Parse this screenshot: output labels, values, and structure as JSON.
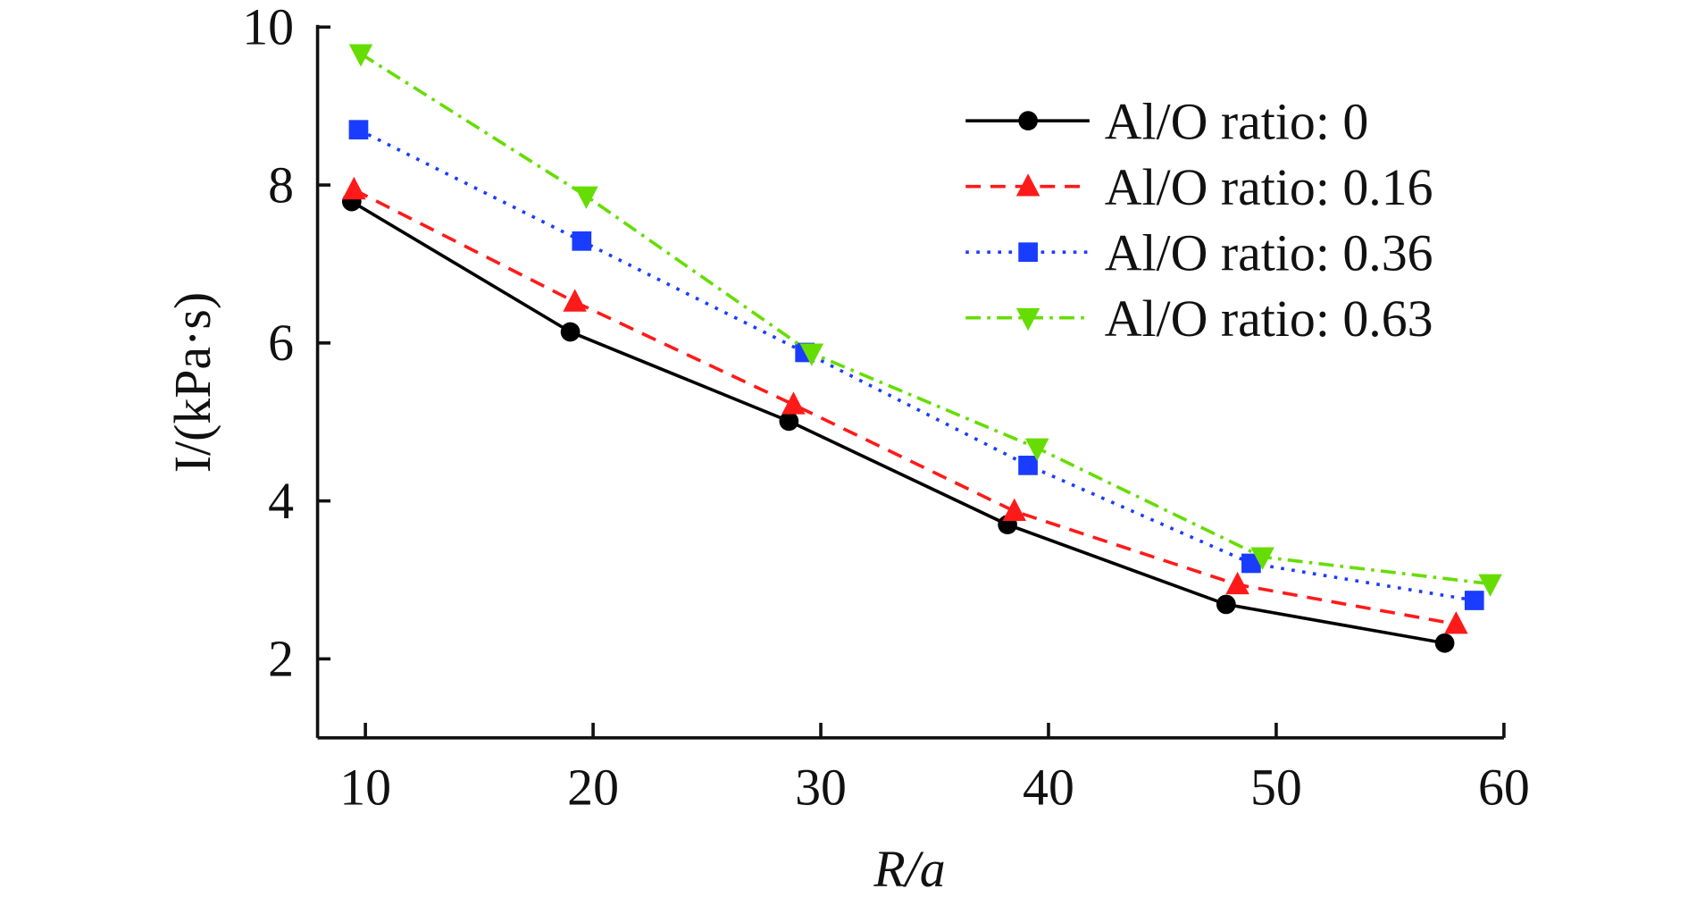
{
  "chart_data": {
    "type": "line",
    "title": "",
    "xlabel": "R/a",
    "ylabel": "I/(kPa·s)",
    "xlim": [
      7.9,
      60
    ],
    "ylim": [
      1,
      10
    ],
    "xticks": [
      10,
      20,
      30,
      40,
      50,
      60
    ],
    "yticks": [
      2,
      4,
      6,
      8,
      10
    ],
    "grid": false,
    "legend_position": "top-right",
    "series": [
      {
        "name": "Al/O ratio: 0",
        "color": "#000000",
        "dash": "solid",
        "marker": "circle",
        "x": [
          9.4,
          19.0,
          28.6,
          38.2,
          47.8,
          57.4
        ],
        "y": [
          7.79,
          6.14,
          5.01,
          3.7,
          2.69,
          2.2
        ]
      },
      {
        "name": "Al/O ratio: 0.16",
        "color": "#ff1a1a",
        "dash": "dashed",
        "marker": "triangle-up",
        "x": [
          9.5,
          19.2,
          28.8,
          38.5,
          48.3,
          57.9
        ],
        "y": [
          7.94,
          6.52,
          5.22,
          3.87,
          2.94,
          2.44
        ]
      },
      {
        "name": "Al/O ratio: 0.36",
        "color": "#1a3cff",
        "dash": "dotted",
        "marker": "square",
        "x": [
          9.7,
          19.5,
          29.3,
          39.1,
          48.9,
          58.7
        ],
        "y": [
          8.7,
          7.29,
          5.88,
          4.45,
          3.21,
          2.74
        ]
      },
      {
        "name": "Al/O ratio: 0.63",
        "color": "#66dd00",
        "dash": "dash-dot",
        "marker": "triangle-down",
        "x": [
          9.8,
          19.7,
          29.6,
          39.5,
          49.4,
          59.4
        ],
        "y": [
          9.66,
          7.86,
          5.87,
          4.67,
          3.29,
          2.95
        ]
      }
    ]
  }
}
